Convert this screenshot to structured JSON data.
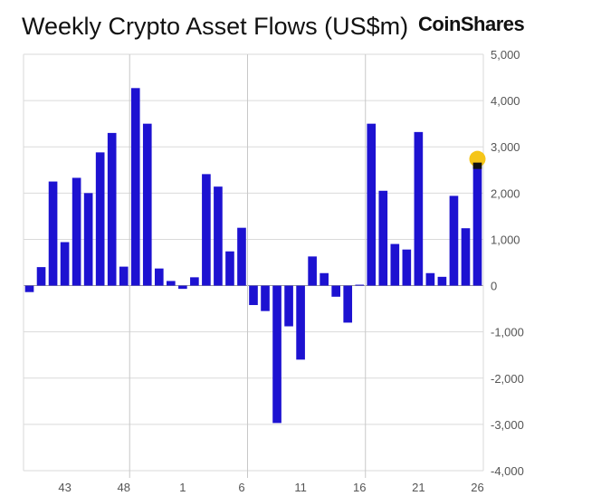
{
  "header": {
    "title": "Weekly Crypto Asset Flows (US$m)",
    "brand": "CoinShares"
  },
  "chart_data": {
    "type": "bar",
    "title": "Weekly Crypto Asset Flows (US$m)",
    "xlabel": "",
    "ylabel": "",
    "ylim": [
      -4000,
      5000
    ],
    "yticks": [
      5000,
      4000,
      3000,
      2000,
      1000,
      0,
      -1000,
      -2000,
      -3000,
      -4000
    ],
    "ytick_labels": [
      "5,000",
      "4,000",
      "3,000",
      "2,000",
      "1,000",
      "0",
      "-1,000",
      "-2,000",
      "-3,000",
      "-4,000"
    ],
    "y_axis_position": "right",
    "grid": "horizontal",
    "week_ticks": [
      {
        "index": 3,
        "label": "43"
      },
      {
        "index": 8,
        "label": "48"
      },
      {
        "index": 13,
        "label": "1"
      },
      {
        "index": 18,
        "label": "6"
      },
      {
        "index": 23,
        "label": "11"
      },
      {
        "index": 28,
        "label": "16"
      },
      {
        "index": 33,
        "label": "21"
      },
      {
        "index": 38,
        "label": "26"
      }
    ],
    "separators_after_index": [
      8,
      18,
      28
    ],
    "values": [
      -140,
      400,
      2250,
      940,
      2330,
      2000,
      2880,
      3300,
      410,
      4270,
      3500,
      370,
      100,
      -70,
      180,
      2410,
      2140,
      740,
      1250,
      -420,
      -550,
      -2970,
      -880,
      -1600,
      630,
      270,
      -240,
      -800,
      20,
      3500,
      2050,
      900,
      780,
      3320,
      270,
      190,
      1940,
      1240,
      2620
    ],
    "bar_color": "#1d12d1",
    "highlight": {
      "index": 38,
      "marker_color": "#f5c518",
      "cap_color": "#111111"
    }
  }
}
